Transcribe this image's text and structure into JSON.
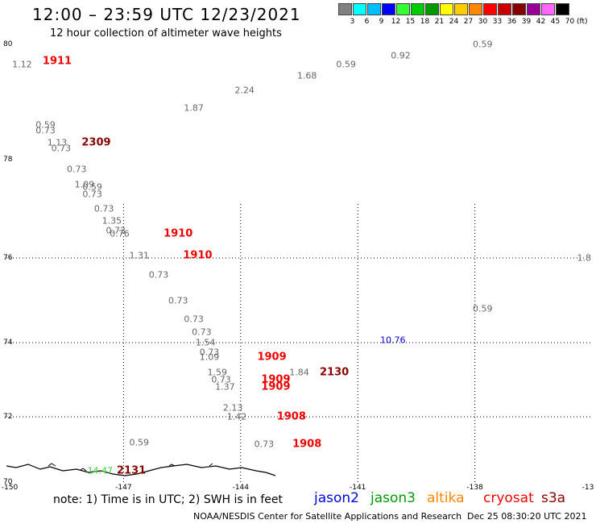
{
  "header": {
    "title": "12:00 – 23:59 UTC 12/23/2021",
    "subtitle": "12 hour collection of altimeter wave heights"
  },
  "legend": {
    "unit": "(ft)",
    "scale": [
      {
        "label": "3",
        "color": "#808080"
      },
      {
        "label": "6",
        "color": "#00ffff"
      },
      {
        "label": "9",
        "color": "#00bfff"
      },
      {
        "label": "12",
        "color": "#0000ff"
      },
      {
        "label": "15",
        "color": "#33ff33"
      },
      {
        "label": "18",
        "color": "#00cc00"
      },
      {
        "label": "21",
        "color": "#009900"
      },
      {
        "label": "24",
        "color": "#ffff00"
      },
      {
        "label": "27",
        "color": "#ffcc00"
      },
      {
        "label": "30",
        "color": "#ff8800"
      },
      {
        "label": "33",
        "color": "#ff0000"
      },
      {
        "label": "36",
        "color": "#cc0000"
      },
      {
        "label": "39",
        "color": "#880000"
      },
      {
        "label": "42",
        "color": "#990099"
      },
      {
        "label": "45",
        "color": "#ff66ff"
      },
      {
        "label": "70",
        "color": "#000000"
      }
    ]
  },
  "axes": {
    "lat_labels": [
      "80",
      "78",
      "76",
      "74",
      "72",
      "70"
    ],
    "lon_labels": [
      "-150",
      "-147",
      "-144",
      "-141",
      "-138",
      "-13"
    ]
  },
  "observations": [
    {
      "lon": -149.6,
      "lat": 79.65,
      "text": "1.12",
      "color": "#666666"
    },
    {
      "lon": -147.8,
      "lat": 77.45,
      "text": "0.59",
      "color": "#666666"
    },
    {
      "lon": -145.2,
      "lat": 78.9,
      "text": "1.87",
      "color": "#666666"
    },
    {
      "lon": -143.9,
      "lat": 79.2,
      "text": "2.24",
      "color": "#666666"
    },
    {
      "lon": -142.3,
      "lat": 79.45,
      "text": "1.68",
      "color": "#666666"
    },
    {
      "lon": -141.3,
      "lat": 79.65,
      "text": "0.59",
      "color": "#666666"
    },
    {
      "lon": -139.9,
      "lat": 79.8,
      "text": "0.92",
      "color": "#666666"
    },
    {
      "lon": -137.8,
      "lat": 80.0,
      "text": "0.59",
      "color": "#666666"
    },
    {
      "lon": -149.0,
      "lat": 78.6,
      "text": "0.59",
      "color": "#666666"
    },
    {
      "lon": -149.0,
      "lat": 78.5,
      "text": "0.73",
      "color": "#666666"
    },
    {
      "lon": -148.7,
      "lat": 78.3,
      "text": "1.13",
      "color": "#666666"
    },
    {
      "lon": -148.6,
      "lat": 78.2,
      "text": "0.73",
      "color": "#666666"
    },
    {
      "lon": -148.2,
      "lat": 77.8,
      "text": "0.73",
      "color": "#666666"
    },
    {
      "lon": -148.0,
      "lat": 77.5,
      "text": "1.09",
      "color": "#666666"
    },
    {
      "lon": -147.8,
      "lat": 77.3,
      "text": "0.73",
      "color": "#666666"
    },
    {
      "lon": -147.5,
      "lat": 77.0,
      "text": "0.73",
      "color": "#666666"
    },
    {
      "lon": -147.3,
      "lat": 76.75,
      "text": "1.35",
      "color": "#666666"
    },
    {
      "lon": -147.2,
      "lat": 76.55,
      "text": "0.73",
      "color": "#666666"
    },
    {
      "lon": -147.1,
      "lat": 76.5,
      "text": "0.76",
      "color": "#666666"
    },
    {
      "lon": -146.6,
      "lat": 76.05,
      "text": "1.31",
      "color": "#666666"
    },
    {
      "lon": -146.1,
      "lat": 75.6,
      "text": "0.73",
      "color": "#666666"
    },
    {
      "lon": -145.6,
      "lat": 75.0,
      "text": "0.73",
      "color": "#666666"
    },
    {
      "lon": -145.2,
      "lat": 74.55,
      "text": "0.73",
      "color": "#666666"
    },
    {
      "lon": -145.0,
      "lat": 74.25,
      "text": "0.73",
      "color": "#666666"
    },
    {
      "lon": -144.9,
      "lat": 74.0,
      "text": "1.54",
      "color": "#666666"
    },
    {
      "lon": -144.8,
      "lat": 73.75,
      "text": "0.73",
      "color": "#666666"
    },
    {
      "lon": -144.8,
      "lat": 73.6,
      "text": "1.09",
      "color": "#666666"
    },
    {
      "lon": -144.6,
      "lat": 73.2,
      "text": "1.59",
      "color": "#666666"
    },
    {
      "lon": -144.5,
      "lat": 73.0,
      "text": "0.73",
      "color": "#666666"
    },
    {
      "lon": -144.4,
      "lat": 72.8,
      "text": "1.37",
      "color": "#666666"
    },
    {
      "lon": -144.2,
      "lat": 72.25,
      "text": "2.13",
      "color": "#666666"
    },
    {
      "lon": -144.1,
      "lat": 72.0,
      "text": "1.42",
      "color": "#666666"
    },
    {
      "lon": -143.4,
      "lat": 71.15,
      "text": "0.73",
      "color": "#666666"
    },
    {
      "lon": -142.5,
      "lat": 73.2,
      "text": "1.84",
      "color": "#666666"
    },
    {
      "lon": -140.1,
      "lat": 74.05,
      "text": "10.76",
      "color": "#0000cc"
    },
    {
      "lon": -137.8,
      "lat": 74.8,
      "text": "0.59",
      "color": "#666666"
    },
    {
      "lon": -135.2,
      "lat": 76.0,
      "text": "1.8",
      "color": "#666666"
    },
    {
      "lon": -146.6,
      "lat": 71.2,
      "text": "0.59",
      "color": "#666666"
    },
    {
      "lon": -147.6,
      "lat": 70.35,
      "text": "14.47",
      "color": "#33cc33"
    }
  ],
  "pass_times": [
    {
      "lon": -148.7,
      "lat": 79.7,
      "text": "1911",
      "color": "#ee0000"
    },
    {
      "lon": -147.7,
      "lat": 78.3,
      "text": "2309",
      "color": "#880000"
    },
    {
      "lon": -145.6,
      "lat": 76.5,
      "text": "1910",
      "color": "#ee0000"
    },
    {
      "lon": -145.1,
      "lat": 76.05,
      "text": "1910",
      "color": "#ee0000"
    },
    {
      "lon": -143.2,
      "lat": 73.6,
      "text": "1909",
      "color": "#ee0000"
    },
    {
      "lon": -143.1,
      "lat": 73.0,
      "text": "1909",
      "color": "#ee0000"
    },
    {
      "lon": -143.1,
      "lat": 72.8,
      "text": "1909",
      "color": "#ee0000"
    },
    {
      "lon": -142.7,
      "lat": 72.0,
      "text": "1908",
      "color": "#ee0000"
    },
    {
      "lon": -142.3,
      "lat": 71.15,
      "text": "1908",
      "color": "#ee0000"
    },
    {
      "lon": -141.6,
      "lat": 73.2,
      "text": "2130",
      "color": "#880000"
    },
    {
      "lon": -146.8,
      "lat": 70.35,
      "text": "2131",
      "color": "#880000"
    }
  ],
  "footer": {
    "note": "note:  1) Time is in UTC;  2) SWH is in feet",
    "satellites": [
      {
        "name": "jason2",
        "color": "#0000dd"
      },
      {
        "name": "jason3",
        "color": "#009900"
      },
      {
        "name": "altika",
        "color": "#ff8800"
      },
      {
        "name": "cryosat",
        "color": "#ee0000"
      },
      {
        "name": "s3a",
        "color": "#880000"
      }
    ],
    "credit": "NOAA/NESDIS Center for Satellite Applications and Research",
    "timestamp": "Dec 25 08:30:20 UTC 2021"
  }
}
